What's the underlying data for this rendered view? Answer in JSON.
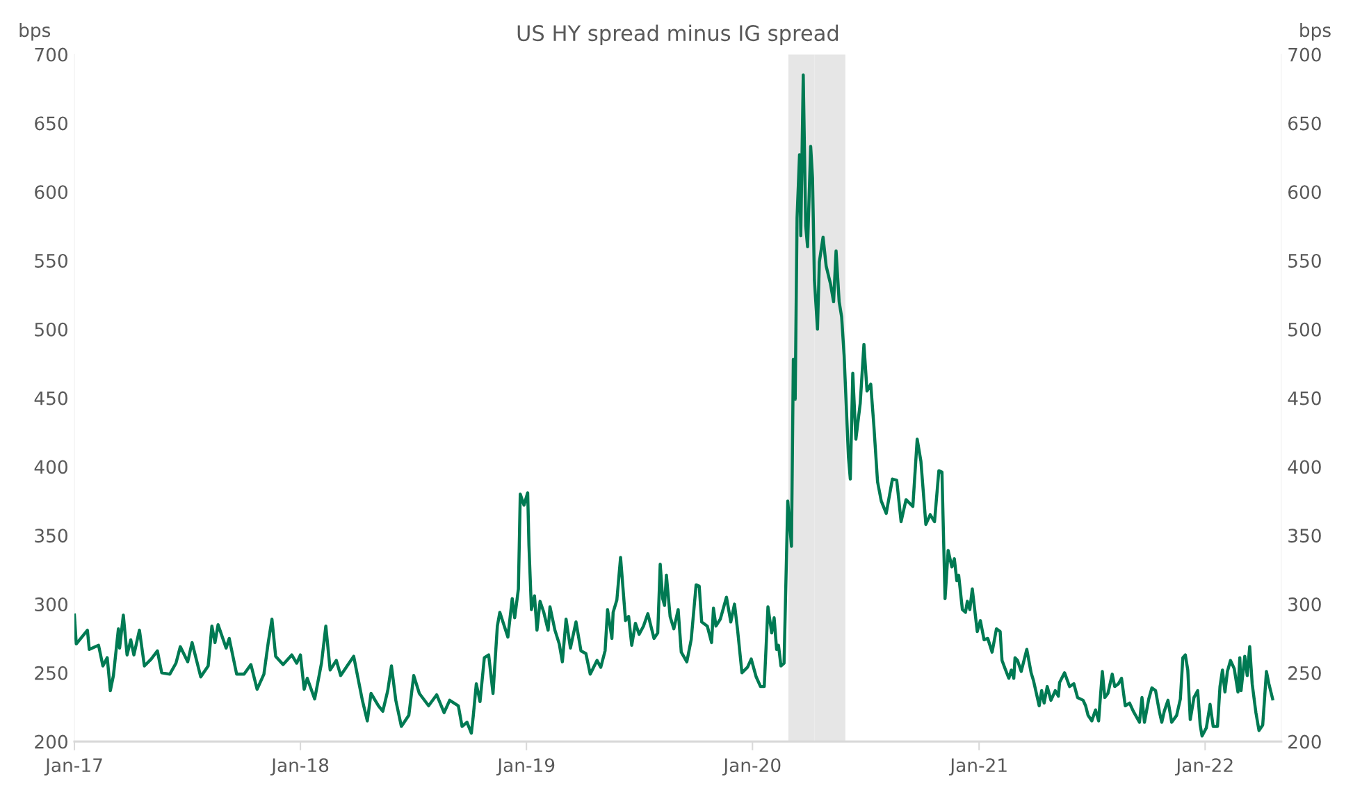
{
  "chart_data": {
    "type": "line",
    "title": "US HY spread minus IG spread",
    "ylabel": "bps",
    "y2label": "bps",
    "x": [
      "2017-01-01",
      "2017-01-04",
      "2017-01-22",
      "2017-01-25",
      "2017-02-09",
      "2017-02-16",
      "2017-02-23",
      "2017-02-28",
      "2017-03-05",
      "2017-03-13",
      "2017-03-15",
      "2017-03-21",
      "2017-03-27",
      "2017-04-02",
      "2017-04-07",
      "2017-04-16",
      "2017-04-24",
      "2017-05-05",
      "2017-05-15",
      "2017-05-22",
      "2017-06-04",
      "2017-06-14",
      "2017-06-21",
      "2017-07-03",
      "2017-07-10",
      "2017-07-24",
      "2017-08-05",
      "2017-08-11",
      "2017-08-16",
      "2017-08-21",
      "2017-09-03",
      "2017-09-08",
      "2017-09-20",
      "2017-10-02",
      "2017-10-13",
      "2017-10-23",
      "2017-11-03",
      "2017-11-10",
      "2017-11-16",
      "2017-11-22",
      "2017-12-04",
      "2017-12-18",
      "2017-12-26",
      "2018-01-01",
      "2018-01-07",
      "2018-01-12",
      "2018-01-24",
      "2018-02-04",
      "2018-02-11",
      "2018-02-18",
      "2018-02-28",
      "2018-03-07",
      "2018-03-22",
      "2018-03-28",
      "2018-04-04",
      "2018-04-11",
      "2018-04-19",
      "2018-04-25",
      "2018-05-07",
      "2018-05-14",
      "2018-05-22",
      "2018-05-28",
      "2018-06-04",
      "2018-06-13",
      "2018-06-25",
      "2018-07-03",
      "2018-07-12",
      "2018-07-27",
      "2018-08-09",
      "2018-08-21",
      "2018-08-30",
      "2018-09-13",
      "2018-09-19",
      "2018-09-27",
      "2018-10-04",
      "2018-10-07",
      "2018-10-12",
      "2018-10-18",
      "2018-10-25",
      "2018-11-01",
      "2018-11-08",
      "2018-11-15",
      "2018-11-19",
      "2018-12-02",
      "2018-12-09",
      "2018-12-13",
      "2018-12-19",
      "2018-12-22",
      "2018-12-28",
      "2019-01-03",
      "2019-01-05",
      "2019-01-09",
      "2019-01-14",
      "2019-01-18",
      "2019-01-23",
      "2019-01-29",
      "2019-02-05",
      "2019-02-08",
      "2019-02-16",
      "2019-02-23",
      "2019-02-28",
      "2019-03-06",
      "2019-03-13",
      "2019-03-22",
      "2019-03-30",
      "2019-04-07",
      "2019-04-14",
      "2019-04-25",
      "2019-05-01",
      "2019-05-08",
      "2019-05-12",
      "2019-05-19",
      "2019-05-21",
      "2019-05-27",
      "2019-06-02",
      "2019-06-10",
      "2019-06-15",
      "2019-06-20",
      "2019-06-26",
      "2019-07-02",
      "2019-07-09",
      "2019-07-16",
      "2019-07-26",
      "2019-08-01",
      "2019-08-05",
      "2019-08-09",
      "2019-08-12",
      "2019-08-15",
      "2019-08-21",
      "2019-08-27",
      "2019-09-03",
      "2019-09-08",
      "2019-09-17",
      "2019-09-24",
      "2019-10-02",
      "2019-10-07",
      "2019-10-11",
      "2019-10-20",
      "2019-10-27",
      "2019-10-30",
      "2019-11-03",
      "2019-11-10",
      "2019-11-20",
      "2019-11-27",
      "2019-12-03",
      "2019-12-08",
      "2019-12-15",
      "2019-12-24",
      "2019-12-30",
      "2020-01-07",
      "2020-01-14",
      "2020-01-20",
      "2020-01-26",
      "2020-02-01",
      "2020-02-05",
      "2020-02-09",
      "2020-02-12",
      "2020-02-16",
      "2020-02-21",
      "2020-02-27",
      "2020-03-04",
      "2020-03-07",
      "2020-03-10",
      "2020-03-13",
      "2020-03-17",
      "2020-03-19",
      "2020-03-23",
      "2020-03-27",
      "2020-03-30",
      "2020-04-04",
      "2020-04-07",
      "2020-04-10",
      "2020-04-15",
      "2020-04-18",
      "2020-04-24",
      "2020-04-29",
      "2020-05-06",
      "2020-05-11",
      "2020-05-15",
      "2020-05-20",
      "2020-05-24",
      "2020-05-28",
      "2020-06-04",
      "2020-06-07",
      "2020-06-11",
      "2020-06-16",
      "2020-06-23",
      "2020-06-29",
      "2020-07-04",
      "2020-07-10",
      "2020-07-15",
      "2020-07-21",
      "2020-07-27",
      "2020-08-04",
      "2020-08-14",
      "2020-08-21",
      "2020-08-28",
      "2020-09-05",
      "2020-09-16",
      "2020-09-23",
      "2020-09-29",
      "2020-10-07",
      "2020-10-14",
      "2020-10-21",
      "2020-10-28",
      "2020-11-02",
      "2020-11-07",
      "2020-11-12",
      "2020-11-18",
      "2020-11-22",
      "2020-11-26",
      "2020-11-29",
      "2020-12-05",
      "2020-12-10",
      "2020-12-13",
      "2020-12-17",
      "2020-12-21",
      "2020-12-29",
      "2021-01-03",
      "2021-01-09",
      "2021-01-15",
      "2021-01-22",
      "2021-01-29",
      "2021-02-04",
      "2021-02-07",
      "2021-02-12",
      "2021-02-18",
      "2021-02-22",
      "2021-02-26",
      "2021-02-28",
      "2021-03-04",
      "2021-03-10",
      "2021-03-19",
      "2021-03-26",
      "2021-03-30",
      "2021-04-08",
      "2021-04-12",
      "2021-04-16",
      "2021-04-21",
      "2021-04-27",
      "2021-05-04",
      "2021-05-09",
      "2021-05-11",
      "2021-05-19",
      "2021-05-27",
      "2021-06-03",
      "2021-06-09",
      "2021-06-18",
      "2021-06-22",
      "2021-06-26",
      "2021-07-02",
      "2021-07-08",
      "2021-07-13",
      "2021-07-19",
      "2021-07-23",
      "2021-07-28",
      "2021-08-04",
      "2021-08-08",
      "2021-08-14",
      "2021-08-19",
      "2021-08-25",
      "2021-09-01",
      "2021-09-07",
      "2021-09-17",
      "2021-09-21",
      "2021-09-25",
      "2021-10-02",
      "2021-10-07",
      "2021-10-13",
      "2021-10-19",
      "2021-10-23",
      "2021-10-27",
      "2021-11-02",
      "2021-11-08",
      "2021-11-16",
      "2021-11-22",
      "2021-11-26",
      "2021-11-30",
      "2021-12-04",
      "2021-12-08",
      "2021-12-14",
      "2021-12-20",
      "2021-12-24",
      "2021-12-27",
      "2022-01-03",
      "2022-01-09",
      "2022-01-14",
      "2022-01-21",
      "2022-01-25",
      "2022-01-29",
      "2022-02-02",
      "2022-02-06",
      "2022-02-11",
      "2022-02-17",
      "2022-02-23",
      "2022-02-26",
      "2022-02-28",
      "2022-03-06",
      "2022-03-10",
      "2022-03-14",
      "2022-03-18",
      "2022-03-24",
      "2022-03-29",
      "2022-04-04",
      "2022-04-10",
      "2022-04-14",
      "2022-04-20"
    ],
    "series": [
      {
        "color": "#007a53",
        "values": [
          292,
          271,
          281,
          267,
          270,
          255,
          261,
          237,
          248,
          282,
          268,
          292,
          263,
          274,
          263,
          281,
          255,
          260,
          266,
          250,
          249,
          257,
          269,
          258,
          272,
          247,
          255,
          284,
          272,
          285,
          268,
          275,
          249,
          249,
          256,
          238,
          249,
          272,
          289,
          262,
          256,
          263,
          257,
          263,
          238,
          246,
          231,
          257,
          284,
          252,
          259,
          248,
          258,
          262,
          246,
          230,
          215,
          235,
          226,
          222,
          237,
          255,
          230,
          211,
          219,
          248,
          235,
          226,
          234,
          221,
          230,
          226,
          211,
          214,
          206,
          218,
          242,
          229,
          261,
          263,
          235,
          284,
          294,
          276,
          304,
          290,
          311,
          380,
          372,
          381,
          343,
          296,
          306,
          281,
          302,
          294,
          281,
          298,
          281,
          271,
          258,
          289,
          268,
          287,
          266,
          264,
          249,
          259,
          254,
          266,
          296,
          275,
          294,
          303,
          334,
          288,
          291,
          270,
          286,
          278,
          284,
          293,
          275,
          279,
          329,
          304,
          299,
          321,
          291,
          282,
          296,
          265,
          258,
          274,
          314,
          313,
          287,
          284,
          272,
          297,
          284,
          289,
          305,
          287,
          300,
          281,
          250,
          254,
          260,
          247,
          240,
          240,
          298,
          279,
          290,
          267,
          270,
          255,
          257,
          375,
          342,
          478,
          449,
          581,
          627,
          568,
          685,
          575,
          560,
          633,
          610,
          536,
          500,
          549,
          567,
          546,
          533,
          520,
          557,
          520,
          509,
          481,
          407,
          391,
          468,
          420,
          446,
          489,
          455,
          460,
          430,
          389,
          375,
          366,
          391,
          390,
          360,
          376,
          371,
          420,
          404,
          358,
          365,
          360,
          397,
          396,
          304,
          339,
          327,
          333,
          317,
          321,
          296,
          294,
          302,
          296,
          311,
          280,
          288,
          274,
          275,
          265,
          282,
          280,
          259,
          253,
          246,
          252,
          246,
          261,
          259,
          251,
          267,
          250,
          244,
          226,
          237,
          228,
          240,
          230,
          237,
          233,
          243,
          250,
          240,
          242,
          232,
          230,
          226,
          219,
          215,
          223,
          215,
          251,
          232,
          235,
          249,
          240,
          242,
          246,
          226,
          228,
          222,
          214,
          232,
          214,
          231,
          239,
          237,
          222,
          214,
          222,
          230,
          214,
          219,
          231,
          261,
          263,
          252,
          216,
          232,
          237,
          212,
          204,
          210,
          227,
          211,
          211,
          240,
          252,
          236,
          251,
          259,
          253,
          236,
          261,
          237,
          262,
          248,
          269,
          242,
          221,
          208,
          212,
          251,
          242,
          231
        ]
      }
    ],
    "xlim": [
      "2017-01-01",
      "2022-05-04"
    ],
    "xticks": [
      {
        "value": "2017-01-01",
        "label": "Jan-17"
      },
      {
        "value": "2018-01-01",
        "label": "Jan-18"
      },
      {
        "value": "2019-01-01",
        "label": "Jan-19"
      },
      {
        "value": "2020-01-01",
        "label": "Jan-20"
      },
      {
        "value": "2021-01-01",
        "label": "Jan-21"
      },
      {
        "value": "2022-01-01",
        "label": "Jan-22"
      }
    ],
    "ylim": [
      200,
      700
    ],
    "yticks": [
      200,
      250,
      300,
      350,
      400,
      450,
      500,
      550,
      600,
      650,
      700
    ],
    "y2lim": [
      200,
      700
    ],
    "y2ticks": [
      200,
      250,
      300,
      350,
      400,
      450,
      500,
      550,
      600,
      650,
      700
    ],
    "bands": [
      {
        "axis": "x",
        "from": "2020-02-28",
        "to": "2020-04-10",
        "color": "#e6e6e6"
      },
      {
        "axis": "x",
        "from": "2020-04-10",
        "to": "2020-05-30",
        "color": "#e6e6e6"
      }
    ],
    "grid": false,
    "legend": false,
    "marker": "none",
    "line_style": "solid"
  }
}
